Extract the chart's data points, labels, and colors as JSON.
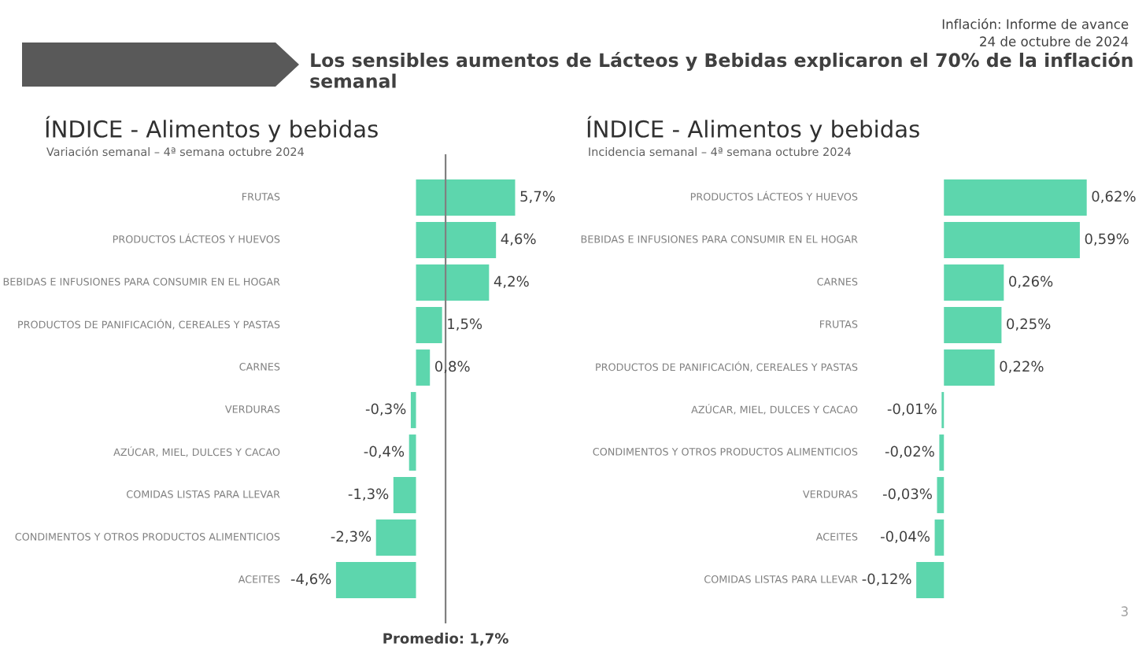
{
  "chart_data": [
    {
      "type": "bar",
      "orientation": "horizontal",
      "title": "ÍNDICE - Alimentos y bebidas",
      "subtitle": "Variación semanal – 4ª semana octubre 2024",
      "categories": [
        "FRUTAS",
        "PRODUCTOS LÁCTEOS Y HUEVOS",
        "BEBIDAS E INFUSIONES PARA CONSUMIR EN EL HOGAR",
        "PRODUCTOS DE PANIFICACIÓN, CEREALES Y PASTAS",
        "CARNES",
        "VERDURAS",
        "AZÚCAR, MIEL, DULCES Y CACAO",
        "COMIDAS LISTAS PARA LLEVAR",
        "CONDIMENTOS Y OTROS PRODUCTOS ALIMENTICIOS",
        "ACEITES"
      ],
      "values": [
        5.7,
        4.6,
        4.2,
        1.5,
        0.8,
        -0.3,
        -0.4,
        -1.3,
        -2.3,
        -4.6
      ],
      "value_labels": [
        "5,7%",
        "4,6%",
        "4,2%",
        "1,5%",
        "0,8%",
        "-0,3%",
        "-0,4%",
        "-1,3%",
        "-2,3%",
        "-4,6%"
      ],
      "color": "#5dd6ad",
      "ref_lines": [
        {
          "axis": "x",
          "value": 1.7,
          "label": "Promedio: 1,7%",
          "color": "#808080"
        }
      ],
      "annotations": [
        "Los sensibles aumentos de Lácteos y Bebidas explicaron el 70% de la inflación semanal",
        "Inflación: Informe de avance",
        "24 de octubre de 2024"
      ],
      "grid": false,
      "legend": false
    },
    {
      "type": "bar",
      "orientation": "horizontal",
      "title": "ÍNDICE - Alimentos y bebidas",
      "subtitle": "Incidencia semanal – 4ª semana octubre 2024",
      "categories": [
        "PRODUCTOS LÁCTEOS Y HUEVOS",
        "BEBIDAS E INFUSIONES PARA CONSUMIR EN EL HOGAR",
        "CARNES",
        "FRUTAS",
        "PRODUCTOS DE PANIFICACIÓN, CEREALES Y PASTAS",
        "AZÚCAR, MIEL, DULCES Y CACAO",
        "CONDIMENTOS Y OTROS PRODUCTOS ALIMENTICIOS",
        "VERDURAS",
        "ACEITES",
        "COMIDAS LISTAS PARA LLEVAR"
      ],
      "values": [
        0.62,
        0.59,
        0.26,
        0.25,
        0.22,
        -0.01,
        -0.02,
        -0.03,
        -0.04,
        -0.12
      ],
      "value_labels": [
        "0,62%",
        "0,59%",
        "0,26%",
        "0,25%",
        "0,22%",
        "-0,01%",
        "-0,02%",
        "-0,03%",
        "-0,04%",
        "-0,12%"
      ],
      "color": "#5dd6ad",
      "annotations": [
        "3"
      ],
      "grid": false,
      "legend": false
    }
  ]
}
